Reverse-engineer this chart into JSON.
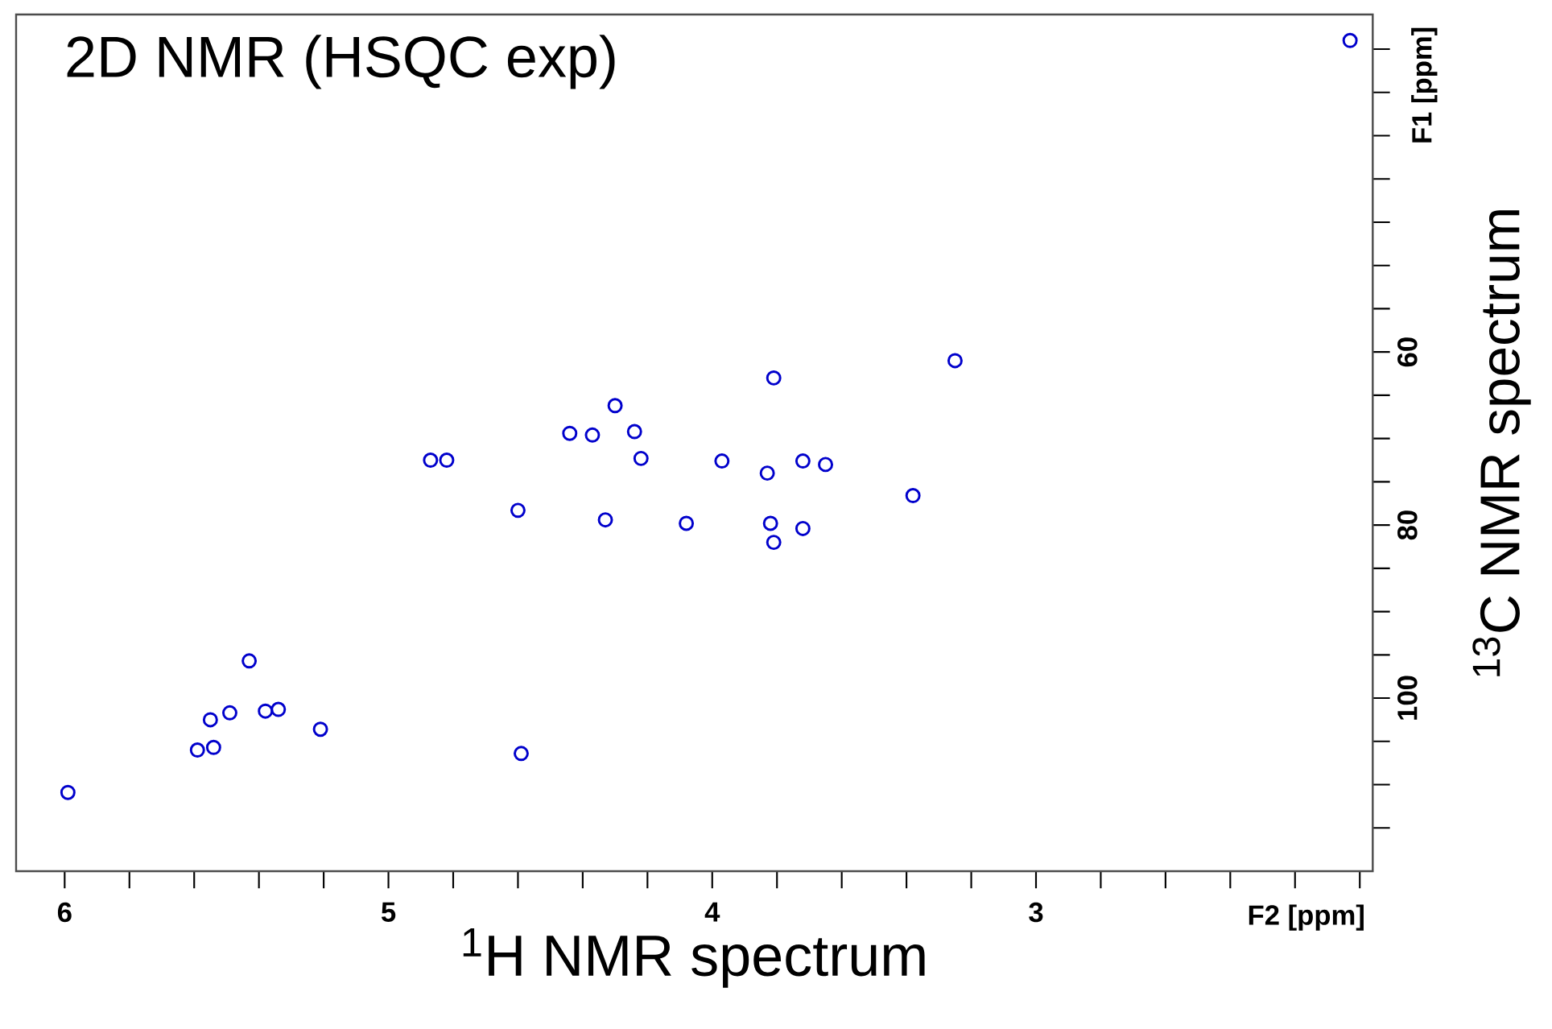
{
  "chart_data": {
    "type": "scatter",
    "title": "2D NMR (HSQC exp)",
    "xlabel": "$^{1}$H NMR spectrum",
    "ylabel": "$^{13}$C NMR spectrum",
    "annotations": [
      "F2 [ppm]",
      "F1 [ppm]"
    ],
    "xlim": [
      6.15,
      1.96
    ],
    "ylim": [
      120,
      21
    ],
    "xticks": [
      6,
      {
        "value": 5.8,
        "label": null
      },
      {
        "value": 5.6,
        "label": null
      },
      {
        "value": 5.4,
        "label": null
      },
      {
        "value": 5.2,
        "label": null
      },
      5,
      {
        "value": 4.8,
        "label": null
      },
      {
        "value": 4.6,
        "label": null
      },
      {
        "value": 4.4,
        "label": null
      },
      {
        "value": 4.2,
        "label": null
      },
      4,
      {
        "value": 3.8,
        "label": null
      },
      {
        "value": 3.6,
        "label": null
      },
      {
        "value": 3.4,
        "label": null
      },
      {
        "value": 3.2,
        "label": null
      },
      3,
      {
        "value": 2.8,
        "label": null
      },
      {
        "value": 2.6,
        "label": null
      },
      {
        "value": 2.4,
        "label": null
      },
      {
        "value": 2.2,
        "label": null
      },
      {
        "value": 2.0,
        "label": null
      }
    ],
    "yticks": [
      {
        "value": 25,
        "label": null
      },
      {
        "value": 30,
        "label": null
      },
      {
        "value": 35,
        "label": null
      },
      {
        "value": 40,
        "label": null
      },
      {
        "value": 45,
        "label": null
      },
      {
        "value": 50,
        "label": null
      },
      {
        "value": 55,
        "label": null
      },
      60,
      {
        "value": 65,
        "label": null
      },
      {
        "value": 70,
        "label": null
      },
      {
        "value": 75,
        "label": null
      },
      80,
      {
        "value": 85,
        "label": null
      },
      {
        "value": 90,
        "label": null
      },
      {
        "value": 95,
        "label": null
      },
      100,
      {
        "value": 105,
        "label": null
      },
      {
        "value": 110,
        "label": null
      },
      {
        "value": 115,
        "label": null
      }
    ],
    "marker": "circle",
    "grid": false,
    "series": [
      {
        "color": "#0000cc",
        "x": [
          2.03,
          3.25,
          3.81,
          3.38,
          4.3,
          4.44,
          4.37,
          4.24,
          4.22,
          4.87,
          4.82,
          3.97,
          3.83,
          3.72,
          3.65,
          4.6,
          4.33,
          4.08,
          3.82,
          3.72,
          3.81,
          5.43,
          5.55,
          5.49,
          5.38,
          5.34,
          5.21,
          5.59,
          5.54,
          5.99,
          4.59
        ],
        "values": [
          24,
          61,
          63,
          76.6,
          66.2,
          69.4,
          69.6,
          69.2,
          72.3,
          72.5,
          72.5,
          72.6,
          74,
          72.6,
          73,
          78.3,
          79.4,
          79.8,
          79.8,
          80.4,
          82,
          95.7,
          102.5,
          101.7,
          101.5,
          101.3,
          103.6,
          106,
          105.7,
          110.9,
          106.4
        ]
      }
    ]
  }
}
